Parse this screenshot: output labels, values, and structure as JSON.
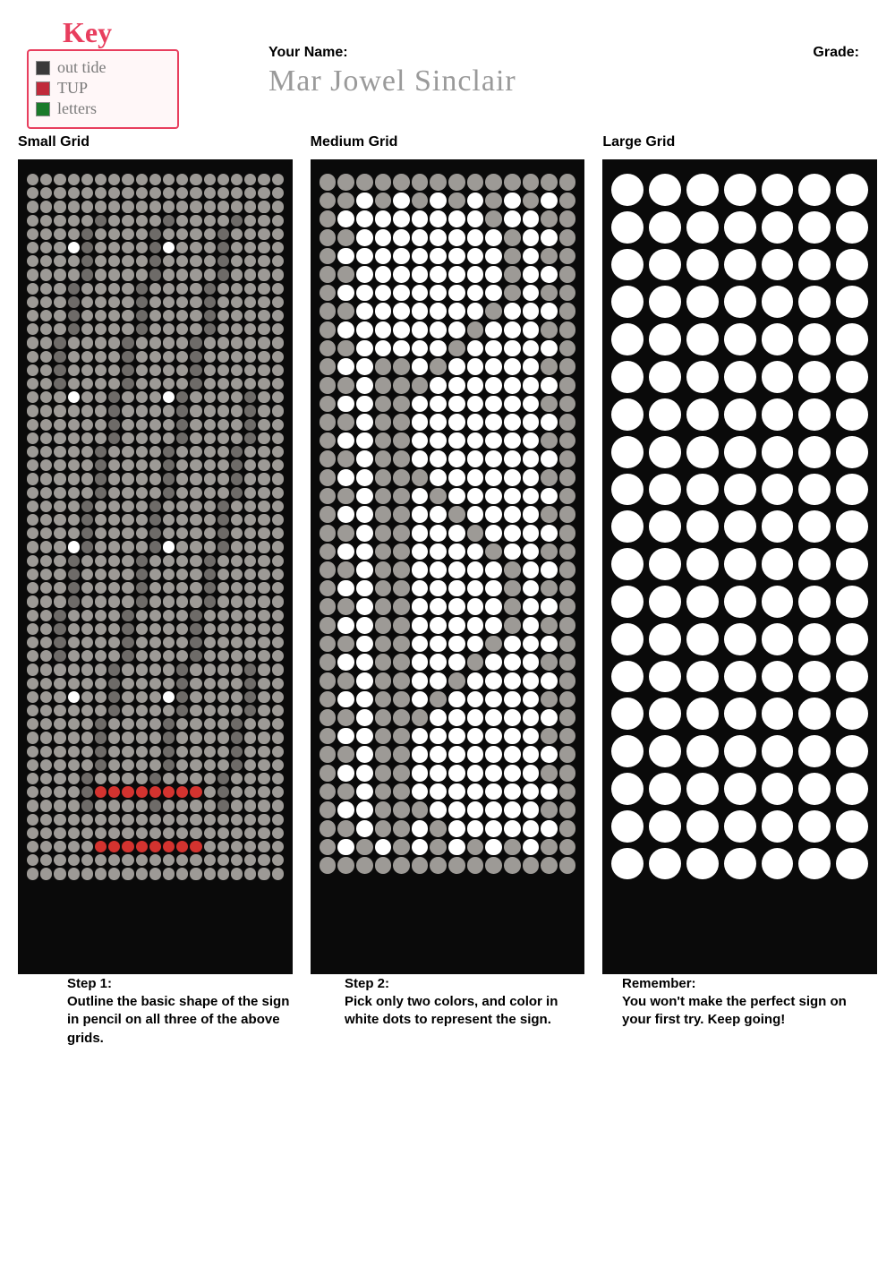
{
  "key": {
    "title": "Key",
    "rows": [
      {
        "swatch_color": "#3a3a3a",
        "text": "out tide"
      },
      {
        "swatch_color": "#c02a3a",
        "text": "TUP"
      },
      {
        "swatch_color": "#1a7a2a",
        "text": "letters"
      }
    ],
    "border_color": "#e83e5e"
  },
  "header": {
    "name_label": "Your Name:",
    "grade_label": "Grade:",
    "name_value": "Mar Jowel Sinclair",
    "grade_value": ""
  },
  "grids": {
    "small": {
      "title": "Small Grid",
      "cols": 19,
      "rows": 52,
      "background_color": "#0a0a0a",
      "dot_base_color": "#ffffff",
      "dot_filled_color": "#9d9a96",
      "dot_dark_color": "#6e6b68",
      "dot_accent_color": "#d4332f",
      "red_rows": [
        45,
        49
      ],
      "red_col_start": 5,
      "red_col_end": 12
    },
    "medium": {
      "title": "Medium Grid",
      "cols": 14,
      "rows": 38,
      "background_color": "#0a0a0a",
      "dot_base_color": "#ffffff",
      "dot_filled_color": "#9d9a96"
    },
    "large": {
      "title": "Large Grid",
      "cols": 7,
      "rows": 19,
      "background_color": "#0a0a0a",
      "dot_base_color": "#ffffff"
    }
  },
  "steps": {
    "s1": {
      "title": "Step 1:",
      "body": "Outline the basic shape of the sign in pencil on all three of the above grids."
    },
    "s2": {
      "title": "Step 2:",
      "body": "Pick only two colors, and color in white dots to represent the sign."
    },
    "s3": {
      "title": "Remember:",
      "body": "You won't make the perfect sign on your first try. Keep going!"
    }
  },
  "typography": {
    "label_fontsize": 16,
    "step_fontsize": 15,
    "name_fontsize": 34
  }
}
